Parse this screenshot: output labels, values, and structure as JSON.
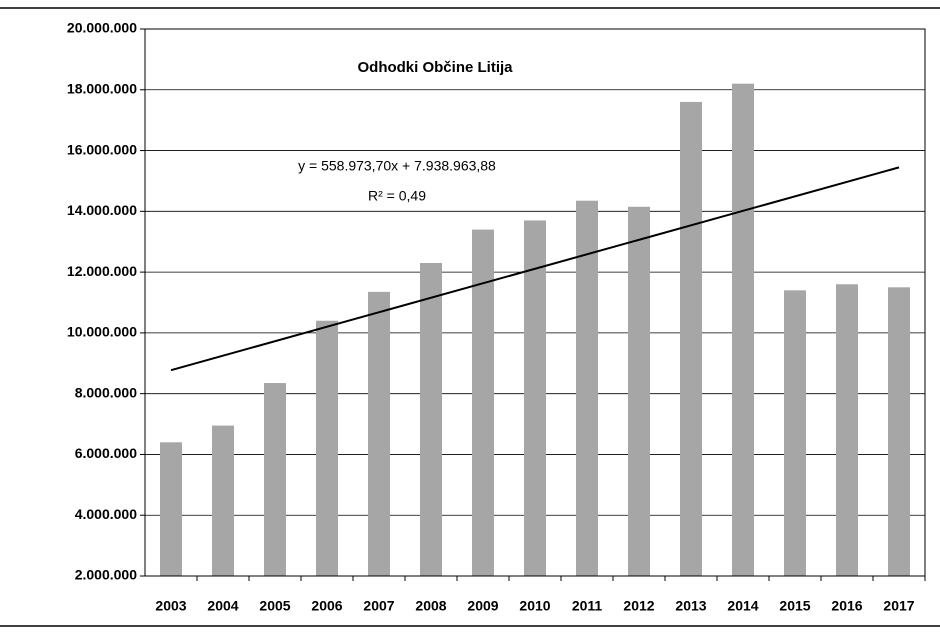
{
  "chart_data": {
    "type": "bar",
    "title": "Odhodki Občine Litija",
    "annotations": [
      "y = 558.973,70x + 7.938.963,88",
      "R² = 0,49"
    ],
    "categories": [
      "2003",
      "2004",
      "2005",
      "2006",
      "2007",
      "2008",
      "2009",
      "2010",
      "2011",
      "2012",
      "2013",
      "2014",
      "2015",
      "2016",
      "2017"
    ],
    "values": [
      6400000,
      6950000,
      8350000,
      10400000,
      11350000,
      12300000,
      13400000,
      13700000,
      14350000,
      14150000,
      17600000,
      18200000,
      11400000,
      11600000,
      11500000
    ],
    "color": "#a6a6a6",
    "ylim": [
      2000000,
      20000000
    ],
    "yticks": [
      {
        "value": 2000000,
        "label": "2.000.000"
      },
      {
        "value": 4000000,
        "label": "4.000.000"
      },
      {
        "value": 6000000,
        "label": "6.000.000"
      },
      {
        "value": 8000000,
        "label": "8.000.000"
      },
      {
        "value": 10000000,
        "label": "10.000.000"
      },
      {
        "value": 12000000,
        "label": "12.000.000"
      },
      {
        "value": 14000000,
        "label": "14.000.000"
      },
      {
        "value": 16000000,
        "label": "16.000.000"
      },
      {
        "value": 18000000,
        "label": "18.000.000"
      },
      {
        "value": 20000000,
        "label": "20.000.000"
      }
    ],
    "grid": true,
    "trendline": "linear"
  }
}
